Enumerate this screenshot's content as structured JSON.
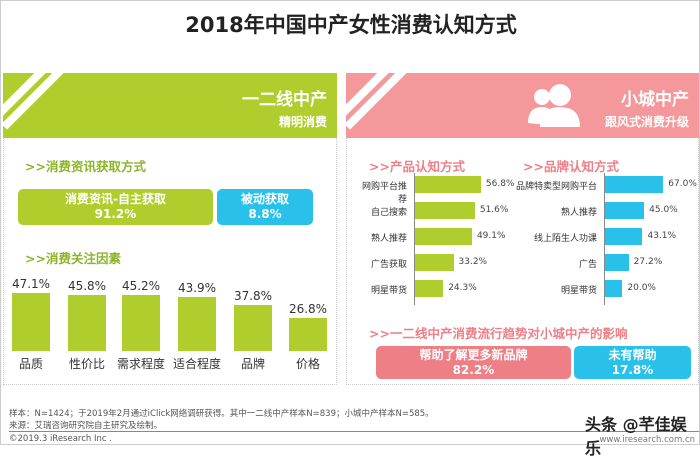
{
  "title": "2018年中国中产女性消费认知方式",
  "left": {
    "heading": "一二线中产",
    "subheading": "精明消费",
    "header_color": "#b0cd2e",
    "section1": ">>消费资讯获取方式",
    "active": {
      "label": "消费资讯-自主获取",
      "value": "91.2%"
    },
    "passive": {
      "label": "被动获取",
      "value": "8.8%"
    },
    "section2": ">>消费关注因素"
  },
  "right": {
    "heading": "小城中产",
    "subheading": "跟风式消费升级",
    "header_color": "#f4989c",
    "icon": "users-icon",
    "section1": ">>产品认知方式",
    "section2": ">>品牌认知方式",
    "section3": ">>一二线中产消费流行趋势对小城中产的影响",
    "helped": {
      "label": "帮助了解更多新品牌",
      "value": "82.2%"
    },
    "not_helped": {
      "label": "未有帮助",
      "value": "17.8%"
    }
  },
  "chart_data": [
    {
      "type": "bar",
      "title": ">>消费关注因素",
      "categories": [
        "品质",
        "性价比",
        "需求程度",
        "适合程度",
        "品牌",
        "价格"
      ],
      "values": [
        47.1,
        45.8,
        45.2,
        43.9,
        37.8,
        26.8
      ],
      "labels": [
        "47.1%",
        "45.8%",
        "45.2%",
        "43.9%",
        "37.8%",
        "26.8%"
      ],
      "color": "#b0cd2e"
    },
    {
      "type": "bar",
      "orientation": "horizontal",
      "title": ">>产品认知方式",
      "categories": [
        "网购平台推荐",
        "自己搜索",
        "熟人推荐",
        "广告获取",
        "明星带货"
      ],
      "values": [
        56.8,
        51.6,
        49.1,
        33.2,
        24.3
      ],
      "labels": [
        "56.8%",
        "51.6%",
        "49.1%",
        "33.2%",
        "24.3%"
      ],
      "color": "#b0cd2e"
    },
    {
      "type": "bar",
      "orientation": "horizontal",
      "title": ">>品牌认知方式",
      "categories": [
        "品牌特卖型网购平台",
        "熟人推荐",
        "线上陌生人功课",
        "广告",
        "明星带货"
      ],
      "values": [
        67.0,
        45.0,
        43.1,
        27.2,
        20.0
      ],
      "labels": [
        "67.0%",
        "45.0%",
        "43.1%",
        "27.2%",
        "20.0%"
      ],
      "color": "#29c0ea"
    }
  ],
  "footer": {
    "note": "样本：N=1424；于2019年2月通过iClick网络调研获得。其中一二线中产样本N=839；小城中产样本N=585。",
    "source": "来源：艾瑞咨询研究院自主研究及绘制。",
    "copyright": "©2019.3 iResearch Inc .",
    "url": "www.iresearch.com.cn",
    "watermark": "头条 @芊佳娱乐"
  }
}
